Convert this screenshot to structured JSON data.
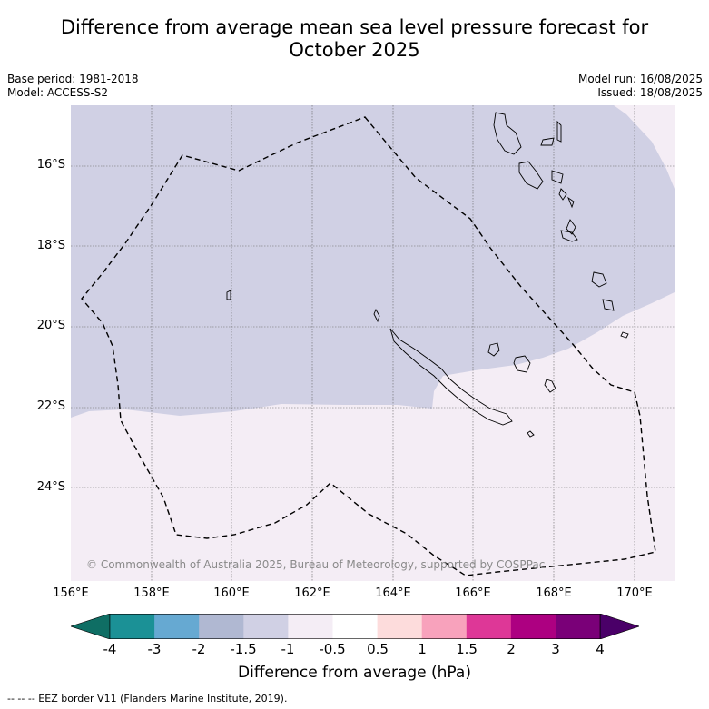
{
  "title_line1": "Difference from average mean sea level pressure forecast for",
  "title_line2": "October 2025",
  "meta": {
    "base_period": "Base period: 1981-2018",
    "model": "Model: ACCESS-S2",
    "model_run": "Model run: 16/08/2025",
    "issued": "Issued: 18/08/2025"
  },
  "map": {
    "lat_labels": [
      "16°S",
      "18°S",
      "20°S",
      "22°S",
      "24°S"
    ],
    "lon_labels": [
      "156°E",
      "158°E",
      "160°E",
      "162°E",
      "164°E",
      "166°E",
      "168°E",
      "170°E"
    ],
    "colors": {
      "neg_1_5_to_neg_1": "#d0d0e4",
      "neg_1_to_neg_0_5": "#f4edf5"
    },
    "copyright": "© Commonwealth of Australia 2025, Bureau of Meteorology, supported by COSPPac"
  },
  "colorbar": {
    "colors": [
      "#0f6e64",
      "#1b9196",
      "#66a9d2",
      "#b0b8d2",
      "#d0d0e4",
      "#f4edf5",
      "#ffffff",
      "#fddcdc",
      "#f8a2bc",
      "#de3797",
      "#ad0081",
      "#7a0078",
      "#4a0068"
    ],
    "ticks": [
      "-4",
      "-3",
      "-2",
      "-1.5",
      "-1",
      "-0.5",
      "0.5",
      "1",
      "1.5",
      "2",
      "3",
      "4"
    ],
    "label": "Difference from average (hPa)"
  },
  "footer": "--  --  -- EEZ border V11 (Flanders Marine Institute, 2019)."
}
